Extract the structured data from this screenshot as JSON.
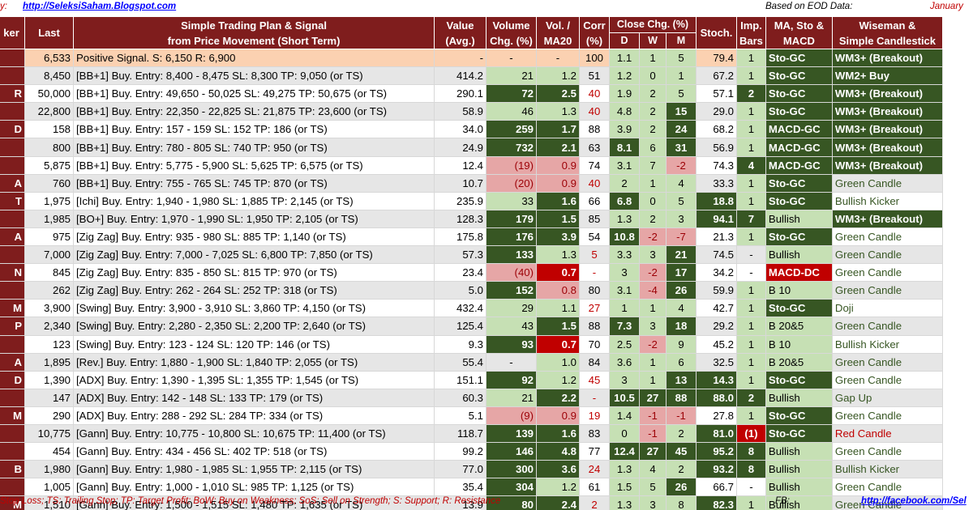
{
  "top": {
    "label_left": "y:",
    "blog_link": "http://SeleksiSaham.Blogspot.com",
    "based_on": "Based on EOD Data:",
    "date_partial": "January"
  },
  "headers": {
    "ticker": "ker",
    "last": "Last",
    "plan_line1": "Simple Trading Plan & Signal",
    "plan_line2": "from Price Movement (Short Term)",
    "value_line1": "Value",
    "value_line2": "(Avg.)",
    "volume_line1": "Volume",
    "volume_line2": "Chg. (%)",
    "vol_line1": "Vol. /",
    "vol_line2": "MA20",
    "corr_line1": "Corr",
    "corr_line2": "(%)",
    "close_chg": "Close Chg. (%)",
    "d": "D",
    "w": "W",
    "m": "M",
    "stoch": "Stoch.",
    "imp_line1": "Imp.",
    "imp_line2": "Bars",
    "ma_line1": "MA, Sto &",
    "ma_line2": "MACD",
    "wise_line1": "Wiseman  &",
    "wise_line2": "Simple Candlestick"
  },
  "rows": [
    {
      "t": "",
      "last": "6,533",
      "plan": "Positive Signal.  S:   6,150  R:   6,900",
      "value": "-",
      "vol": "-",
      "vm": "-",
      "corr": "100",
      "d": "1.1",
      "w": "1",
      "m": "5",
      "st": "79.4",
      "imp": "1",
      "ma": "Sto-GC",
      "wise": "WM3+ (Breakout)"
    },
    {
      "t": "",
      "last": "8,450",
      "plan": "[BB+1] Buy.  Entry:  8,400 -  8,475  SL:  8,300  TP:  9,050  (or TS)",
      "value": "414.2",
      "vol": "21",
      "vm": "1.2",
      "corr": "51",
      "d": "1.2",
      "w": "0",
      "m": "1",
      "st": "67.2",
      "imp": "1",
      "ma": "Sto-GC",
      "wise": "WM2+ Buy"
    },
    {
      "t": "R",
      "last": "50,000",
      "plan": "[BB+1] Buy.  Entry: 49,650 - 50,025  SL: 49,275  TP: 50,675  (or TS)",
      "value": "290.1",
      "vol": "72",
      "vm": "2.5",
      "corr": "40",
      "d": "1.9",
      "w": "2",
      "m": "5",
      "st": "57.1",
      "imp": "2",
      "ma": "Sto-GC",
      "wise": "WM3+ (Breakout)"
    },
    {
      "t": "",
      "last": "22,800",
      "plan": "[BB+1] Buy.  Entry: 22,350 - 22,825  SL: 21,875  TP: 23,600  (or TS)",
      "value": "58.9",
      "vol": "46",
      "vm": "1.3",
      "corr": "40",
      "d": "4.8",
      "w": "2",
      "m": "15",
      "st": "29.0",
      "imp": "1",
      "ma": "Sto-GC",
      "wise": "WM3+ (Breakout)"
    },
    {
      "t": "D",
      "last": "158",
      "plan": "[BB+1] Buy.  Entry:    157 -    159  SL:    152  TP:    186  (or TS)",
      "value": "34.0",
      "vol": "259",
      "vm": "1.7",
      "corr": "88",
      "d": "3.9",
      "w": "2",
      "m": "24",
      "st": "68.2",
      "imp": "1",
      "ma": "MACD-GC",
      "wise": "WM3+ (Breakout)"
    },
    {
      "t": "",
      "last": "800",
      "plan": "[BB+1] Buy.  Entry:    780 -    805  SL:    740  TP:    950  (or TS)",
      "value": "24.9",
      "vol": "732",
      "vm": "2.1",
      "corr": "63",
      "d": "8.1",
      "w": "6",
      "m": "31",
      "st": "56.9",
      "imp": "1",
      "ma": "MACD-GC",
      "wise": "WM3+ (Breakout)"
    },
    {
      "t": "",
      "last": "5,875",
      "plan": "[BB+1] Buy.  Entry:  5,775 -  5,900  SL:  5,625  TP:  6,575  (or TS)",
      "value": "12.4",
      "vol": "(19)",
      "vm": "0.9",
      "corr": "74",
      "d": "3.1",
      "w": "7",
      "m": "-2",
      "st": "74.3",
      "imp": "4",
      "ma": "MACD-GC",
      "wise": "WM3+ (Breakout)"
    },
    {
      "t": "A",
      "last": "760",
      "plan": "[BB+1] Buy.  Entry:    755 -    765  SL:    745  TP:    870  (or TS)",
      "value": "10.7",
      "vol": "(20)",
      "vm": "0.9",
      "corr": "40",
      "d": "2",
      "w": "1",
      "m": "4",
      "st": "33.3",
      "imp": "1",
      "ma": "Sto-GC",
      "wise": "Green Candle"
    },
    {
      "t": "T",
      "last": "1,975",
      "plan": "[Ichi] Buy.  Entry:  1,940 -  1,980  SL:  1,885  TP:  2,145  (or TS)",
      "value": "235.9",
      "vol": "33",
      "vm": "1.6",
      "corr": "66",
      "d": "6.8",
      "w": "0",
      "m": "5",
      "st": "18.8",
      "imp": "1",
      "ma": "Sto-GC",
      "wise": "Bullish Kicker"
    },
    {
      "t": "",
      "last": "1,985",
      "plan": "[BO+] Buy.  Entry:  1,970 -  1,990  SL:  1,950  TP:  2,105  (or TS)",
      "value": "128.3",
      "vol": "179",
      "vm": "1.5",
      "corr": "85",
      "d": "1.3",
      "w": "2",
      "m": "3",
      "st": "94.1",
      "imp": "7",
      "ma": "Bullish",
      "wise": "WM3+ (Breakout)"
    },
    {
      "t": "A",
      "last": "975",
      "plan": "[Zig Zag] Buy.  Entry:    935 -    980  SL:    885  TP:  1,140  (or TS)",
      "value": "175.8",
      "vol": "176",
      "vm": "3.9",
      "corr": "54",
      "d": "10.8",
      "w": "-2",
      "m": "-7",
      "st": "21.3",
      "imp": "1",
      "ma": "Sto-GC",
      "wise": "Green Candle"
    },
    {
      "t": "",
      "last": "7,000",
      "plan": "[Zig Zag] Buy.  Entry:  7,000 -  7,025  SL:  6,800  TP:  7,850  (or TS)",
      "value": "57.3",
      "vol": "133",
      "vm": "1.3",
      "corr": "5",
      "d": "3.3",
      "w": "3",
      "m": "21",
      "st": "74.5",
      "imp": "-",
      "ma": "Bullish",
      "wise": "Green Candle"
    },
    {
      "t": "N",
      "last": "845",
      "plan": "[Zig Zag] Buy.  Entry:    835 -    850  SL:    815  TP:    970  (or TS)",
      "value": "23.4",
      "vol": "(40)",
      "vm": "0.7",
      "corr": "-",
      "d": "3",
      "w": "-2",
      "m": "17",
      "st": "34.2",
      "imp": "-",
      "ma": "MACD-DC",
      "wise": "Green Candle"
    },
    {
      "t": "",
      "last": "262",
      "plan": "[Zig Zag] Buy.  Entry:    262 -    264  SL:    252  TP:    318  (or TS)",
      "value": "5.0",
      "vol": "152",
      "vm": "0.8",
      "corr": "80",
      "d": "3.1",
      "w": "-4",
      "m": "26",
      "st": "59.9",
      "imp": "1",
      "ma": "B 10",
      "wise": "Green Candle"
    },
    {
      "t": "M",
      "last": "3,900",
      "plan": "[Swing] Buy.  Entry:  3,900 -  3,910  SL:  3,860  TP:  4,150  (or TS)",
      "value": "432.4",
      "vol": "29",
      "vm": "1.1",
      "corr": "27",
      "d": "1",
      "w": "1",
      "m": "4",
      "st": "42.7",
      "imp": "1",
      "ma": "Sto-GC",
      "wise": "Doji"
    },
    {
      "t": "P",
      "last": "2,340",
      "plan": "[Swing] Buy.  Entry:  2,280 -  2,350  SL:  2,200  TP:  2,640  (or TS)",
      "value": "125.4",
      "vol": "43",
      "vm": "1.5",
      "corr": "88",
      "d": "7.3",
      "w": "3",
      "m": "18",
      "st": "29.2",
      "imp": "1",
      "ma": "B 20&5",
      "wise": "Green Candle"
    },
    {
      "t": "",
      "last": "123",
      "plan": "[Swing] Buy.  Entry:    123 -    124  SL:    120  TP:    146  (or TS)",
      "value": "9.3",
      "vol": "93",
      "vm": "0.7",
      "corr": "70",
      "d": "2.5",
      "w": "-2",
      "m": "9",
      "st": "45.2",
      "imp": "1",
      "ma": "B 10",
      "wise": "Bullish Kicker"
    },
    {
      "t": "A",
      "last": "1,895",
      "plan": "[Rev.] Buy.  Entry:  1,880 -  1,900  SL:  1,840  TP:  2,055  (or TS)",
      "value": "55.4",
      "vol": "-",
      "vm": "1.0",
      "corr": "84",
      "d": "3.6",
      "w": "1",
      "m": "6",
      "st": "32.5",
      "imp": "1",
      "ma": "B 20&5",
      "wise": "Green Candle"
    },
    {
      "t": "D",
      "last": "1,390",
      "plan": "[ADX] Buy.  Entry:  1,390 -  1,395  SL:  1,355  TP:  1,545  (or TS)",
      "value": "151.1",
      "vol": "92",
      "vm": "1.2",
      "corr": "45",
      "d": "3",
      "w": "1",
      "m": "13",
      "st": "14.3",
      "imp": "1",
      "ma": "Sto-GC",
      "wise": "Green Candle"
    },
    {
      "t": "",
      "last": "147",
      "plan": "[ADX] Buy.  Entry:    142 -    148  SL:    133  TP:    179  (or TS)",
      "value": "60.3",
      "vol": "21",
      "vm": "2.2",
      "corr": "-",
      "d": "10.5",
      "w": "27",
      "m": "88",
      "st": "88.0",
      "imp": "2",
      "ma": "Bullish",
      "wise": "Gap Up"
    },
    {
      "t": "M",
      "last": "290",
      "plan": "[ADX] Buy.  Entry:    288 -    292  SL:    284  TP:    334  (or TS)",
      "value": "5.1",
      "vol": "(9)",
      "vm": "0.9",
      "corr": "19",
      "d": "1.4",
      "w": "-1",
      "m": "-1",
      "st": "27.8",
      "imp": "1",
      "ma": "Sto-GC",
      "wise": "Green Candle"
    },
    {
      "t": "",
      "last": "10,775",
      "plan": "[Gann] Buy.  Entry: 10,775 - 10,800  SL: 10,675  TP: 11,400  (or TS)",
      "value": "118.7",
      "vol": "139",
      "vm": "1.6",
      "corr": "83",
      "d": "0",
      "w": "-1",
      "m": "2",
      "st": "81.0",
      "imp": "(1)",
      "ma": "Sto-GC",
      "wise": "Red Candle"
    },
    {
      "t": "",
      "last": "454",
      "plan": "[Gann] Buy.  Entry:    434 -    456  SL:    402  TP:    518  (or TS)",
      "value": "99.2",
      "vol": "146",
      "vm": "4.8",
      "corr": "77",
      "d": "12.4",
      "w": "27",
      "m": "45",
      "st": "95.2",
      "imp": "8",
      "ma": "Bullish",
      "wise": "Green Candle"
    },
    {
      "t": "B",
      "last": "1,980",
      "plan": "[Gann] Buy.  Entry:  1,980 -  1,985  SL:  1,955  TP:  2,115  (or TS)",
      "value": "77.0",
      "vol": "300",
      "vm": "3.6",
      "corr": "24",
      "d": "1.3",
      "w": "4",
      "m": "2",
      "st": "93.2",
      "imp": "8",
      "ma": "Bullish",
      "wise": "Bullish Kicker"
    },
    {
      "t": "",
      "last": "1,005",
      "plan": "[Gann] Buy.  Entry:  1,000 -  1,010  SL:    985  TP:  1,125  (or TS)",
      "value": "35.4",
      "vol": "304",
      "vm": "1.2",
      "corr": "61",
      "d": "1.5",
      "w": "5",
      "m": "26",
      "st": "66.7",
      "imp": "-",
      "ma": "Bullish",
      "wise": "Green Candle"
    },
    {
      "t": "M",
      "last": "1,510",
      "plan": "[Gann] Buy.  Entry:  1,500 -  1,515  SL:  1,480  TP:  1,635  (or TS)",
      "value": "13.9",
      "vol": "80",
      "vm": "2.4",
      "corr": "2",
      "d": "1.3",
      "w": "3",
      "m": "8",
      "st": "82.3",
      "imp": "1",
      "ma": "Bullish",
      "wise": "Green Candle"
    }
  ],
  "footer": {
    "legend": "Stop Loss; TS: Trailing Stop; TP: Target Profit; BoW: Buy on Weakness; SoS: Sell on Strength; S: Support; R: Resistance",
    "fb_label": "FB:",
    "fb_link": "http://facebook.com/Sel"
  }
}
